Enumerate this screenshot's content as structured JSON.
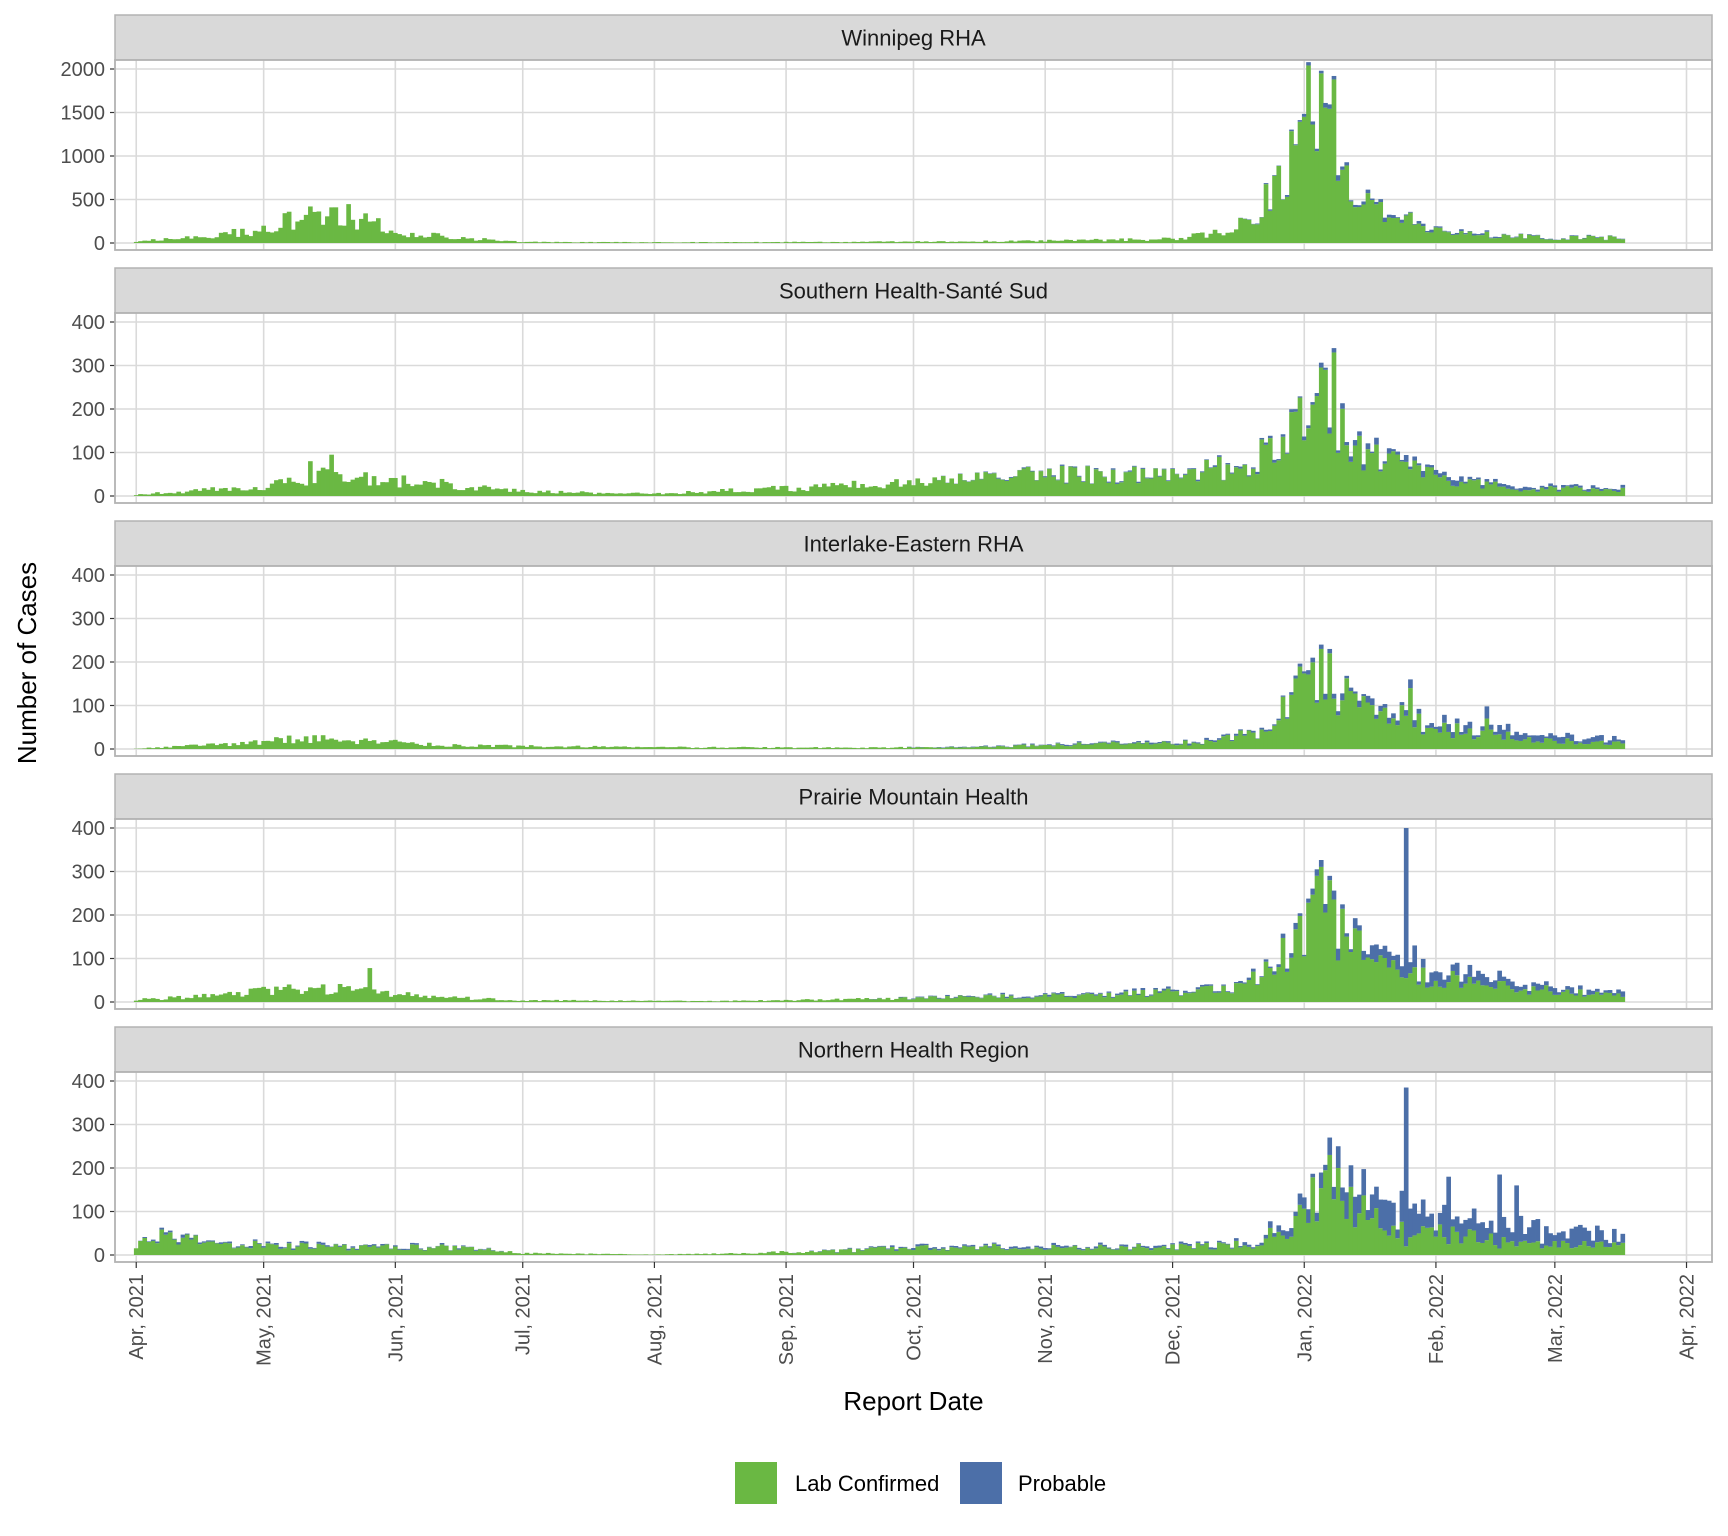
{
  "chart_data": {
    "type": "bar",
    "stacked": true,
    "xlabel": "Report Date",
    "ylabel": "Number of Cases",
    "x_ticks": [
      "Apr, 2021",
      "May, 2021",
      "Jun, 2021",
      "Jul, 2021",
      "Aug, 2021",
      "Sep, 2021",
      "Oct, 2021",
      "Nov, 2021",
      "Dec, 2021",
      "Jan, 2022",
      "Feb, 2022",
      "Mar, 2022",
      "Apr, 2022"
    ],
    "x_range": [
      "2021-03-27",
      "2022-04-07"
    ],
    "data_range": [
      "2021-04-01",
      "2022-03-17"
    ],
    "grid": true,
    "legend_position": "bottom",
    "series_names": [
      "Lab Confirmed",
      "Probable"
    ],
    "colors": {
      "Lab Confirmed": "#6ab843",
      "Probable": "#4c6fa8"
    },
    "panels": [
      {
        "title": "Winnipeg RHA",
        "ylim": [
          0,
          2000
        ],
        "yticks": [
          0,
          500,
          1000,
          1500,
          2000
        ],
        "profile": [
          [
            "2021-04-01",
            20,
            0
          ],
          [
            "2021-04-15",
            60,
            0
          ],
          [
            "2021-05-01",
            160,
            0
          ],
          [
            "2021-05-13",
            360,
            0
          ],
          [
            "2021-05-20",
            330,
            0
          ],
          [
            "2021-06-01",
            130,
            0
          ],
          [
            "2021-06-15",
            60,
            0
          ],
          [
            "2021-07-01",
            12,
            0
          ],
          [
            "2021-08-01",
            8,
            0
          ],
          [
            "2021-09-01",
            10,
            0
          ],
          [
            "2021-10-01",
            15,
            0
          ],
          [
            "2021-11-01",
            25,
            0
          ],
          [
            "2021-12-01",
            45,
            0
          ],
          [
            "2021-12-15",
            150,
            0
          ],
          [
            "2021-12-25",
            550,
            10
          ],
          [
            "2022-01-01",
            1300,
            20
          ],
          [
            "2022-01-04",
            1750,
            30
          ],
          [
            "2022-01-06",
            1850,
            40
          ],
          [
            "2022-01-08",
            1500,
            40
          ],
          [
            "2022-01-12",
            500,
            40
          ],
          [
            "2022-01-20",
            360,
            30
          ],
          [
            "2022-02-01",
            180,
            20
          ],
          [
            "2022-02-15",
            90,
            10
          ],
          [
            "2022-03-01",
            60,
            5
          ],
          [
            "2022-03-17",
            60,
            5
          ]
        ],
        "peaks": [
          [
            "2022-01-05",
            1950,
            30
          ],
          [
            "2022-01-08",
            1880,
            40
          ],
          [
            "2021-05-12",
            420,
            0
          ],
          [
            "2021-05-18",
            410,
            0
          ]
        ]
      },
      {
        "title": "Southern Health-Santé Sud",
        "ylim": [
          0,
          400
        ],
        "yticks": [
          0,
          100,
          200,
          300,
          400
        ],
        "profile": [
          [
            "2021-04-01",
            3,
            0
          ],
          [
            "2021-04-15",
            12,
            0
          ],
          [
            "2021-05-01",
            20,
            0
          ],
          [
            "2021-05-15",
            45,
            0
          ],
          [
            "2021-05-25",
            40,
            0
          ],
          [
            "2021-06-10",
            30,
            0
          ],
          [
            "2021-07-01",
            10,
            0
          ],
          [
            "2021-08-01",
            5,
            0
          ],
          [
            "2021-09-01",
            18,
            0
          ],
          [
            "2021-10-01",
            30,
            0
          ],
          [
            "2021-11-01",
            50,
            2
          ],
          [
            "2021-12-01",
            45,
            2
          ],
          [
            "2021-12-20",
            75,
            3
          ],
          [
            "2021-12-28",
            160,
            5
          ],
          [
            "2022-01-03",
            210,
            8
          ],
          [
            "2022-01-06",
            240,
            8
          ],
          [
            "2022-01-10",
            150,
            10
          ],
          [
            "2022-01-15",
            90,
            10
          ],
          [
            "2022-01-25",
            70,
            10
          ],
          [
            "2022-02-05",
            40,
            8
          ],
          [
            "2022-02-20",
            18,
            5
          ],
          [
            "2022-03-17",
            14,
            4
          ]
        ],
        "peaks": [
          [
            "2022-01-08",
            330,
            10
          ],
          [
            "2022-01-06",
            290,
            5
          ],
          [
            "2021-05-17",
            95,
            0
          ],
          [
            "2021-05-12",
            80,
            0
          ]
        ]
      },
      {
        "title": "Interlake-Eastern RHA",
        "ylim": [
          0,
          400
        ],
        "yticks": [
          0,
          100,
          200,
          300,
          400
        ],
        "profile": [
          [
            "2021-04-01",
            1,
            0
          ],
          [
            "2021-04-20",
            10,
            0
          ],
          [
            "2021-05-10",
            25,
            0
          ],
          [
            "2021-05-25",
            18,
            0
          ],
          [
            "2021-06-15",
            8,
            0
          ],
          [
            "2021-08-01",
            4,
            0
          ],
          [
            "2021-09-15",
            3,
            0
          ],
          [
            "2021-10-15",
            4,
            1
          ],
          [
            "2021-11-15",
            12,
            2
          ],
          [
            "2021-12-10",
            15,
            3
          ],
          [
            "2021-12-22",
            40,
            3
          ],
          [
            "2021-12-30",
            140,
            5
          ],
          [
            "2022-01-05",
            190,
            8
          ],
          [
            "2022-01-10",
            120,
            10
          ],
          [
            "2022-01-20",
            80,
            10
          ],
          [
            "2022-02-01",
            50,
            10
          ],
          [
            "2022-02-15",
            30,
            15
          ],
          [
            "2022-03-01",
            20,
            10
          ],
          [
            "2022-03-17",
            12,
            8
          ]
        ],
        "peaks": [
          [
            "2022-01-05",
            230,
            10
          ],
          [
            "2022-01-07",
            220,
            10
          ],
          [
            "2022-01-26",
            140,
            20
          ],
          [
            "2022-02-13",
            70,
            28
          ]
        ]
      },
      {
        "title": "Prairie Mountain Health",
        "ylim": [
          0,
          400
        ],
        "yticks": [
          0,
          100,
          200,
          300,
          400
        ],
        "profile": [
          [
            "2021-04-01",
            5,
            0
          ],
          [
            "2021-04-20",
            15,
            0
          ],
          [
            "2021-05-05",
            30,
            0
          ],
          [
            "2021-05-20",
            30,
            0
          ],
          [
            "2021-06-10",
            12,
            0
          ],
          [
            "2021-07-01",
            4,
            0
          ],
          [
            "2021-08-15",
            2,
            0
          ],
          [
            "2021-09-15",
            6,
            0
          ],
          [
            "2021-10-15",
            12,
            2
          ],
          [
            "2021-11-15",
            15,
            3
          ],
          [
            "2021-12-15",
            30,
            3
          ],
          [
            "2021-12-25",
            80,
            5
          ],
          [
            "2022-01-01",
            160,
            10
          ],
          [
            "2022-01-05",
            220,
            20
          ],
          [
            "2022-01-10",
            150,
            20
          ],
          [
            "2022-01-20",
            70,
            25
          ],
          [
            "2022-02-01",
            55,
            20
          ],
          [
            "2022-02-15",
            35,
            15
          ],
          [
            "2022-03-01",
            25,
            10
          ],
          [
            "2022-03-17",
            15,
            8
          ]
        ],
        "peaks": [
          [
            "2022-01-25",
            55,
            345
          ],
          [
            "2022-01-04",
            290,
            15
          ],
          [
            "2022-01-07",
            280,
            10
          ],
          [
            "2021-05-26",
            78,
            0
          ],
          [
            "2022-01-27",
            80,
            50
          ]
        ]
      },
      {
        "title": "Northern Health Region",
        "ylim": [
          0,
          400
        ],
        "yticks": [
          0,
          100,
          200,
          300,
          400
        ],
        "profile": [
          [
            "2021-04-01",
            25,
            0
          ],
          [
            "2021-04-08",
            45,
            5
          ],
          [
            "2021-04-20",
            25,
            3
          ],
          [
            "2021-05-15",
            18,
            3
          ],
          [
            "2021-06-15",
            18,
            2
          ],
          [
            "2021-07-01",
            4,
            0
          ],
          [
            "2021-08-01",
            1,
            0
          ],
          [
            "2021-08-20",
            4,
            0
          ],
          [
            "2021-09-15",
            10,
            1
          ],
          [
            "2021-10-01",
            18,
            3
          ],
          [
            "2021-11-01",
            18,
            3
          ],
          [
            "2021-12-01",
            18,
            3
          ],
          [
            "2021-12-20",
            25,
            5
          ],
          [
            "2021-12-30",
            70,
            15
          ],
          [
            "2022-01-05",
            150,
            30
          ],
          [
            "2022-01-12",
            110,
            40
          ],
          [
            "2022-01-20",
            70,
            50
          ],
          [
            "2022-02-01",
            50,
            45
          ],
          [
            "2022-02-15",
            35,
            40
          ],
          [
            "2022-03-01",
            25,
            30
          ],
          [
            "2022-03-17",
            20,
            25
          ]
        ],
        "peaks": [
          [
            "2022-01-25",
            20,
            365
          ],
          [
            "2022-01-07",
            230,
            40
          ],
          [
            "2022-01-09",
            200,
            50
          ],
          [
            "2022-02-04",
            25,
            155
          ],
          [
            "2022-02-16",
            15,
            170
          ],
          [
            "2022-02-20",
            20,
            140
          ]
        ]
      }
    ]
  }
}
